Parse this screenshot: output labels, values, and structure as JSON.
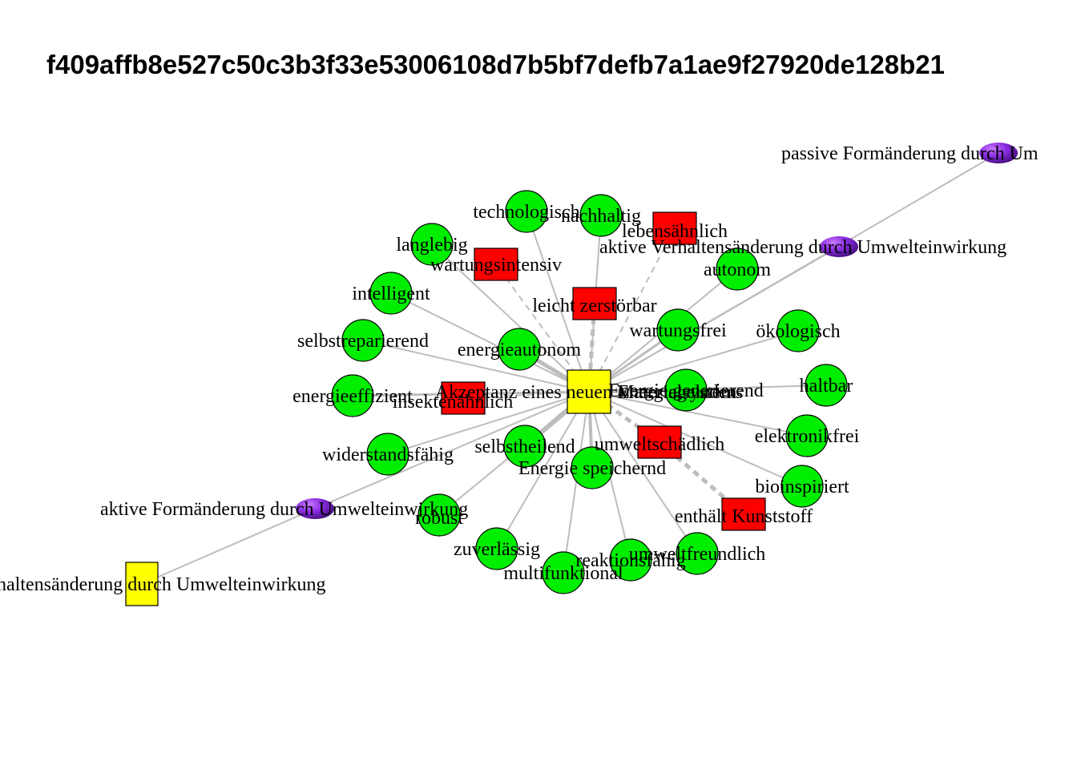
{
  "title": "f409affb8e527c50c3b3f33e53006108d7b5bf7defb7a1ae9f27920de128b21",
  "colors": {
    "concept_circle": "#00ee00",
    "concept_square_red": "#ff0000",
    "concept_square_yellow": "#ffff00",
    "central": "#ffff00",
    "process_ellipse": "#7a1fd6",
    "edge": "#bdbdbd",
    "outline": "#000000"
  },
  "nodes": [
    {
      "id": "central",
      "label": "Akzeptanz eines neuen Materialsystems",
      "shape": "square-yellow"
    },
    {
      "id": "energiegeladen",
      "label": "Energiegeladen",
      "shape": "hidden"
    },
    {
      "id": "technologisch",
      "label": "technologisch",
      "shape": "circle"
    },
    {
      "id": "nachhaltig",
      "label": "nachhaltig",
      "shape": "circle"
    },
    {
      "id": "lebensaehnlich",
      "label": "lebensähnlich",
      "shape": "square-red"
    },
    {
      "id": "langlebig",
      "label": "langlebig",
      "shape": "circle"
    },
    {
      "id": "wartungsintensiv",
      "label": "wartungsintensiv",
      "shape": "square-red"
    },
    {
      "id": "autonom",
      "label": "autonom",
      "shape": "circle"
    },
    {
      "id": "intelligent",
      "label": "intelligent",
      "shape": "circle"
    },
    {
      "id": "leicht_zerstoerbar",
      "label": "leicht zerstörbar",
      "shape": "square-red"
    },
    {
      "id": "wartungsfrei",
      "label": "wartungsfrei",
      "shape": "circle"
    },
    {
      "id": "oekologisch",
      "label": "ökologisch",
      "shape": "circle"
    },
    {
      "id": "selbstreparierend",
      "label": "selbstreparierend",
      "shape": "circle"
    },
    {
      "id": "energieautonom",
      "label": "energieautonom",
      "shape": "circle"
    },
    {
      "id": "energieeffizient",
      "label": "energieeffizient",
      "shape": "circle"
    },
    {
      "id": "insektenaehnlich",
      "label": "insektenähnlich",
      "shape": "square-red"
    },
    {
      "id": "energie_generierend",
      "label": "Energie generierend",
      "shape": "circle"
    },
    {
      "id": "haltbar",
      "label": "haltbar",
      "shape": "circle"
    },
    {
      "id": "elektronikfrei",
      "label": "elektronikfrei",
      "shape": "circle"
    },
    {
      "id": "widerstandsfaehig",
      "label": "widerstandsfähig",
      "shape": "circle"
    },
    {
      "id": "selbstheilend",
      "label": "selbstheilend",
      "shape": "circle"
    },
    {
      "id": "umweltschaedlich",
      "label": "umweltschädlich",
      "shape": "square-red"
    },
    {
      "id": "energie_speichernd",
      "label": "Energie speichernd",
      "shape": "circle"
    },
    {
      "id": "bioinspiriert",
      "label": "bioinspiriert",
      "shape": "circle"
    },
    {
      "id": "robust",
      "label": "robust",
      "shape": "circle"
    },
    {
      "id": "enthaelt_kunststoff",
      "label": "enthält Kunststoff",
      "shape": "square-red"
    },
    {
      "id": "zuverlaessig",
      "label": "zuverlässig",
      "shape": "circle"
    },
    {
      "id": "reaktionsfaehig",
      "label": "reaktionsfähig",
      "shape": "circle"
    },
    {
      "id": "umweltfreundlich",
      "label": "umweltfreundlich",
      "shape": "circle"
    },
    {
      "id": "multifunktional",
      "label": "multifunktional",
      "shape": "circle"
    },
    {
      "id": "passive_formaenderung",
      "label": "passive Formänderung durch Um",
      "shape": "ellipse"
    },
    {
      "id": "aktive_verhaltensaenderung",
      "label": "aktive Verhaltensänderung durch Umwelteinwirkung",
      "shape": "ellipse"
    },
    {
      "id": "aktive_formaenderung",
      "label": "aktive Formänderung durch Umwelteinwirkung",
      "shape": "ellipse"
    },
    {
      "id": "verhaltensaenderung_square",
      "label": "haltensänderung durch Umwelteinwirkung",
      "shape": "square-yellow"
    }
  ],
  "edges": [
    {
      "from": "central",
      "to": "technologisch",
      "style": "solid"
    },
    {
      "from": "central",
      "to": "nachhaltig",
      "style": "solid"
    },
    {
      "from": "central",
      "to": "lebensaehnlich",
      "style": "dashed"
    },
    {
      "from": "central",
      "to": "langlebig",
      "style": "solid"
    },
    {
      "from": "central",
      "to": "wartungsintensiv",
      "style": "dashed"
    },
    {
      "from": "central",
      "to": "autonom",
      "style": "solid"
    },
    {
      "from": "central",
      "to": "intelligent",
      "style": "solid"
    },
    {
      "from": "central",
      "to": "leicht_zerstoerbar",
      "style": "dashed"
    },
    {
      "from": "central",
      "to": "wartungsfrei",
      "style": "solid"
    },
    {
      "from": "central",
      "to": "oekologisch",
      "style": "solid"
    },
    {
      "from": "central",
      "to": "selbstreparierend",
      "style": "solid"
    },
    {
      "from": "central",
      "to": "energieautonom",
      "style": "solid"
    },
    {
      "from": "central",
      "to": "energieeffizient",
      "style": "solid"
    },
    {
      "from": "central",
      "to": "insektenaehnlich",
      "style": "dashed"
    },
    {
      "from": "central",
      "to": "energie_generierend",
      "style": "solid"
    },
    {
      "from": "central",
      "to": "haltbar",
      "style": "solid"
    },
    {
      "from": "central",
      "to": "elektronikfrei",
      "style": "solid"
    },
    {
      "from": "central",
      "to": "widerstandsfaehig",
      "style": "solid"
    },
    {
      "from": "central",
      "to": "selbstheilend",
      "style": "solid"
    },
    {
      "from": "central",
      "to": "umweltschaedlich",
      "style": "dashed"
    },
    {
      "from": "central",
      "to": "energie_speichernd",
      "style": "solid"
    },
    {
      "from": "central",
      "to": "bioinspiriert",
      "style": "solid"
    },
    {
      "from": "central",
      "to": "robust",
      "style": "solid"
    },
    {
      "from": "central",
      "to": "zuverlaessig",
      "style": "solid"
    },
    {
      "from": "central",
      "to": "reaktionsfaehig",
      "style": "solid"
    },
    {
      "from": "central",
      "to": "umweltfreundlich",
      "style": "solid"
    },
    {
      "from": "central",
      "to": "multifunktional",
      "style": "solid"
    },
    {
      "from": "central",
      "to": "passive_formaenderung",
      "style": "solid"
    },
    {
      "from": "central",
      "to": "aktive_verhaltensaenderung",
      "style": "solid"
    },
    {
      "from": "umweltschaedlich",
      "to": "enthaelt_kunststoff",
      "style": "dashed"
    },
    {
      "from": "aktive_formaenderung",
      "to": "verhaltensaenderung_square",
      "style": "solid"
    },
    {
      "from": "central",
      "to": "aktive_formaenderung",
      "style": "solid"
    }
  ]
}
